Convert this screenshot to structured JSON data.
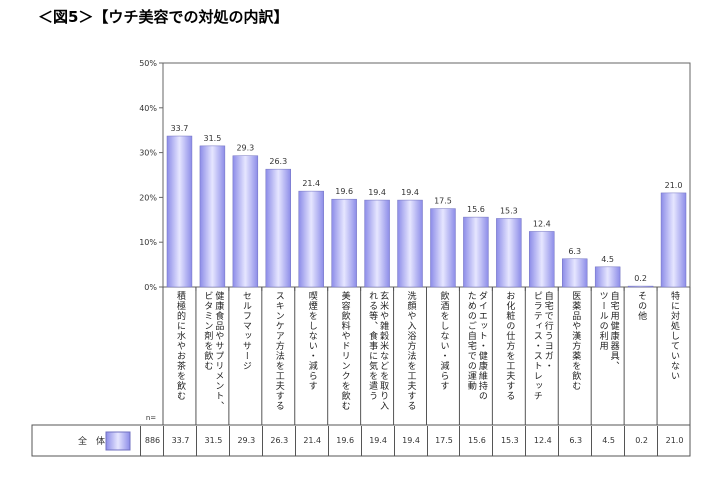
{
  "title": "＜図5＞【ウチ美容での対処の内訳】",
  "chart_data": {
    "type": "bar",
    "ylim": [
      0,
      50
    ],
    "yticks": [
      "0%",
      "10%",
      "20%",
      "30%",
      "40%",
      "50%"
    ],
    "grid": false,
    "categories": [
      "積極的に水やお茶を飲む",
      "健康食品やサプリメント、\nビタミン剤を飲む",
      "セルフマッサージ",
      "スキンケア方法を工夫する",
      "喫煙をしない・減らす",
      "美容飲料やドリンクを飲む",
      "玄米や雑穀米などを取り入\nれる等、食事に気を遣う",
      "洗顔や入浴方法を工夫する",
      "飲酒をしない・減らす",
      "ダイエット・健康維持の\nためのご自宅での運動",
      "お化粧の仕方を工夫する",
      "自宅で行うヨガ・\nピラティス・ストレッチ",
      "医薬品や漢方薬を飲む",
      "自宅用健康器具、\nツールの利用",
      "その他",
      "特に対処していない"
    ],
    "values": [
      33.7,
      31.5,
      29.3,
      26.3,
      21.4,
      19.6,
      19.4,
      19.4,
      17.5,
      15.6,
      15.3,
      12.4,
      6.3,
      4.5,
      0.2,
      21.0
    ],
    "bar_color": "#a8a8f0"
  },
  "table": {
    "n_label": "n=",
    "row_label": "全　体",
    "n": "886",
    "values": [
      "33.7",
      "31.5",
      "29.3",
      "26.3",
      "21.4",
      "19.6",
      "19.4",
      "19.4",
      "17.5",
      "15.6",
      "15.3",
      "12.4",
      "6.3",
      "4.5",
      "0.2",
      "21.0"
    ]
  }
}
